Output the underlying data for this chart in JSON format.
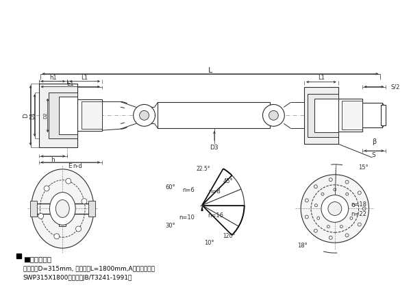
{
  "bg_color": "#ffffff",
  "lc": "#2a2a2a",
  "dc": "#2a2a2a",
  "gc": "#888888",
  "note_title": "■标记示例：",
  "note_line1": "回转直径D=315mm, 安装长度L=1800mm,A型万向联轴器",
  "note_line2": "SWP315X1800联轴器（JB/T3241-1991）"
}
